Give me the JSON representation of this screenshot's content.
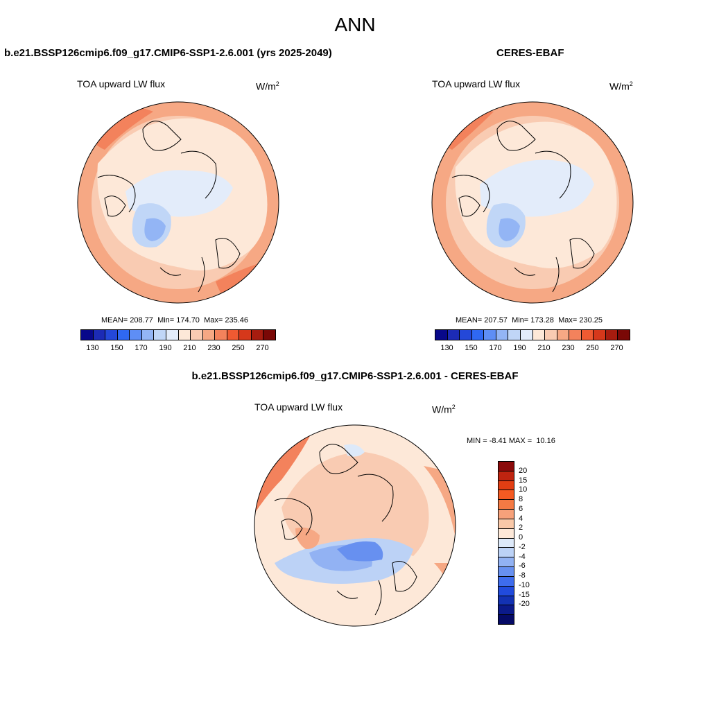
{
  "figure": {
    "title": "ANN"
  },
  "panel_model": {
    "title": "b.e21.BSSP126cmip6.f09_g17.CMIP6-SSP1-2.6.001 (yrs 2025-2049)",
    "variable": "TOA upward LW flux",
    "unit_base": "W/m",
    "unit_exp": "2",
    "mean_label": "MEAN=",
    "mean": "208.77",
    "min_label": "Min=",
    "min": "174.70",
    "max_label": "Max=",
    "max": "235.46"
  },
  "panel_obs": {
    "title": "CERES-EBAF",
    "variable": "TOA upward LW flux",
    "unit_base": "W/m",
    "unit_exp": "2",
    "mean_label": "MEAN=",
    "mean": "207.57",
    "min_label": "Min=",
    "min": "173.28",
    "max_label": "Max=",
    "max": "230.25"
  },
  "panel_diff": {
    "title": "b.e21.BSSP126cmip6.f09_g17.CMIP6-SSP1-2.6.001 - CERES-EBAF",
    "variable": "TOA upward LW flux",
    "unit_base": "W/m",
    "unit_exp": "2",
    "min_label": "MIN =",
    "min": "-8.41",
    "max_label": "MAX =",
    "max": "10.16"
  },
  "abs_colorbar": {
    "colors": [
      "#08088a",
      "#1c2bb5",
      "#2448d8",
      "#2f68f2",
      "#5e8ef5",
      "#93b5f5",
      "#c0d6f7",
      "#e3ecfa",
      "#fde8d8",
      "#f9cbb2",
      "#f6a884",
      "#f3825c",
      "#ef5a32",
      "#d6381b",
      "#a71c0f",
      "#7a0806"
    ],
    "ticks": [
      "130",
      "150",
      "170",
      "190",
      "210",
      "230",
      "250",
      "270"
    ]
  },
  "diff_colorbar": {
    "colors": [
      "#8b0a0a",
      "#bf2410",
      "#e23e13",
      "#f45a22",
      "#f47a44",
      "#f6a17a",
      "#f9c8a8",
      "#fde8d8",
      "#dde9f9",
      "#bcd2f6",
      "#92b2f3",
      "#6790f0",
      "#3e6ced",
      "#214bdc",
      "#1332b3",
      "#0b1a8a",
      "#050a66"
    ],
    "labels": [
      "20",
      "15",
      "10",
      "8",
      "6",
      "4",
      "2",
      "0",
      "-2",
      "-4",
      "-6",
      "-8",
      "-10",
      "-15",
      "-20"
    ]
  }
}
